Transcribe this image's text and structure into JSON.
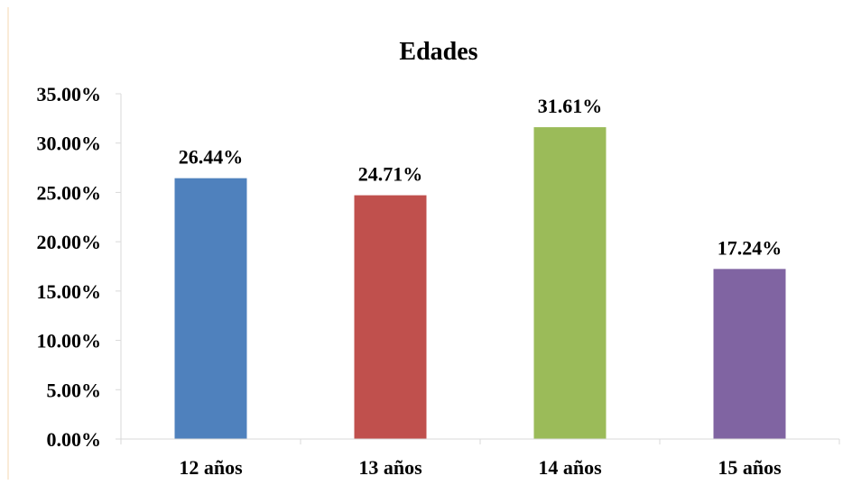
{
  "chart_data": {
    "type": "bar",
    "title": "Edades",
    "xlabel": "",
    "ylabel": "",
    "categories": [
      "12 años",
      "13 años",
      "14 años",
      "15 años"
    ],
    "values": [
      26.44,
      24.71,
      31.61,
      17.24
    ],
    "data_labels": [
      "26.44%",
      "24.71%",
      "31.61%",
      "17.24%"
    ],
    "colors": [
      "#4F81BD",
      "#C0504D",
      "#9BBB59",
      "#8064A2"
    ],
    "ylim": [
      0,
      35
    ],
    "yticks": [
      0,
      5,
      10,
      15,
      20,
      25,
      30,
      35
    ],
    "ytick_labels": [
      "0.00%",
      "5.00%",
      "10.00%",
      "15.00%",
      "20.00%",
      "25.00%",
      "30.00%",
      "35.00%"
    ],
    "grid": false,
    "legend": "none",
    "axis_color": "#D9D9D9",
    "frame_color": "#F4D7B0"
  }
}
